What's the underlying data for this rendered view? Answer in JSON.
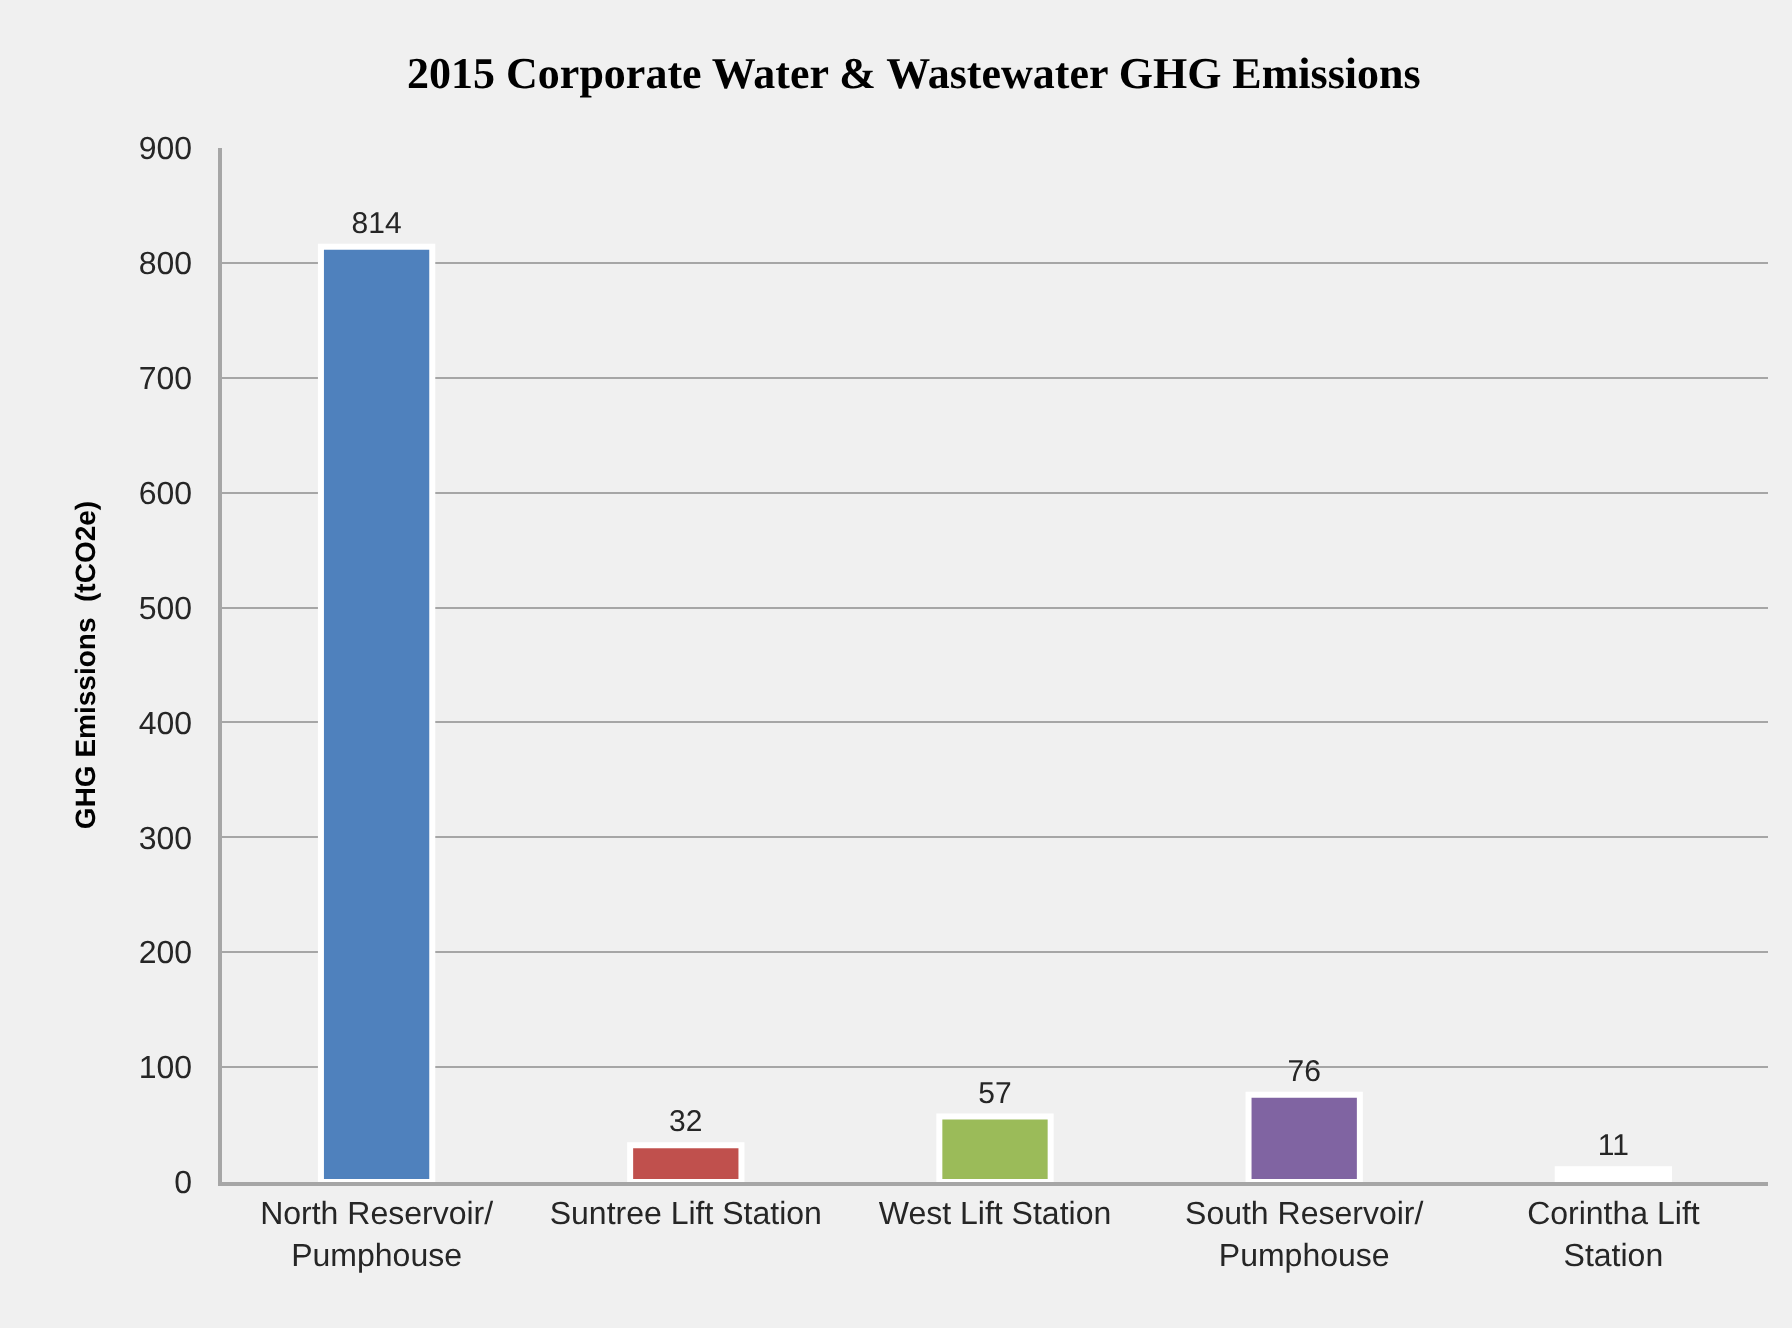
{
  "chart_data": {
    "type": "bar",
    "title": "2015 Corporate Water & Wastewater GHG Emissions",
    "ylabel": "GHG Emissions  (tCO2e)",
    "categories": [
      "North Reservoir/ Pumphouse",
      "Suntree Lift Station",
      "West Lift Station",
      "South Reservoir/ Pumphouse",
      "Corintha Lift Station"
    ],
    "values": [
      814,
      32,
      57,
      76,
      11
    ],
    "colors": [
      "#4f81bd",
      "#c0504d",
      "#9bbb59",
      "#8064a2",
      "#ffffff"
    ],
    "ylim": [
      0,
      900
    ],
    "yticks": [
      0,
      100,
      200,
      300,
      400,
      500,
      600,
      700,
      800,
      900
    ],
    "grid": "y",
    "data_labels": true
  }
}
